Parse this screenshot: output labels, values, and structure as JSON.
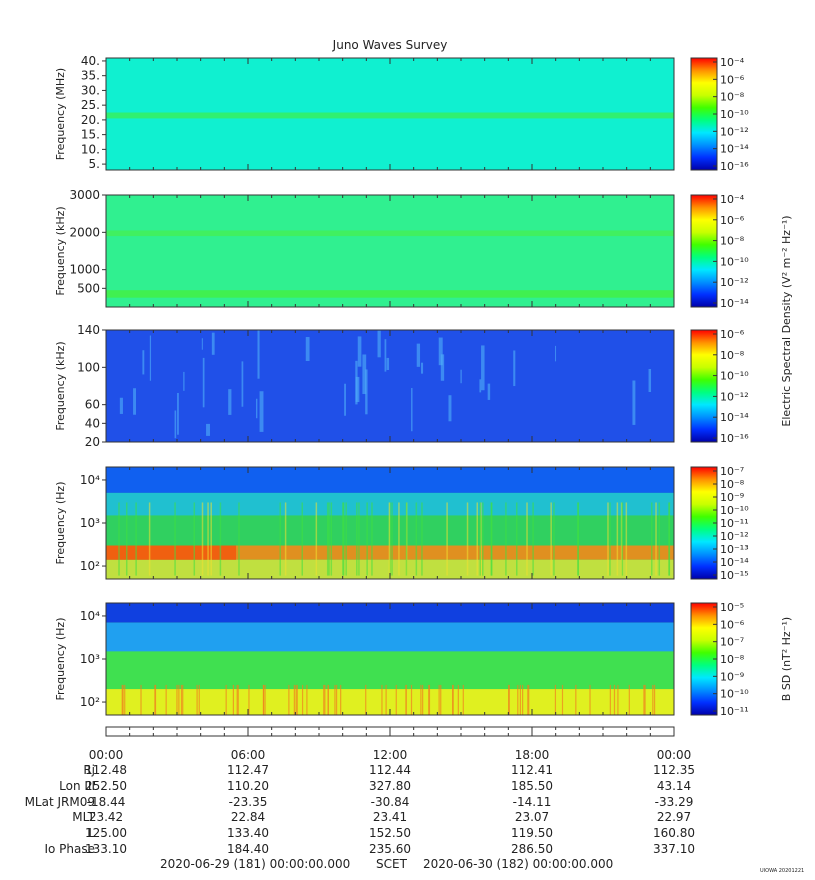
{
  "title": "Juno Waves Survey",
  "palette": [
    "#0000aa",
    "#0030ff",
    "#0090ff",
    "#00e8ff",
    "#00ff80",
    "#40ff00",
    "#c8ff00",
    "#ffff00",
    "#ff9000",
    "#ff0000"
  ],
  "chart_data": [
    {
      "type": "heatmap",
      "id": "panel1",
      "ylabel": "Frequency (MHz)",
      "yscale": "linear",
      "ylim": [
        3,
        41
      ],
      "yticks": [
        "40.",
        "35.",
        "30.",
        "25.",
        "20.",
        "15.",
        "10.",
        "5."
      ],
      "yticks_values": [
        40,
        35,
        30,
        25,
        20,
        15,
        10,
        5
      ],
      "background_color": "#10f0d0",
      "bands": [
        {
          "from": 20.5,
          "to": 22.5,
          "color": "#30f070"
        }
      ],
      "colorbar_ticks": [
        "10⁻⁴",
        "10⁻⁶",
        "10⁻⁸",
        "10⁻¹⁰",
        "10⁻¹²",
        "10⁻¹⁴",
        "10⁻¹⁶"
      ]
    },
    {
      "type": "heatmap",
      "id": "panel2",
      "ylabel": "Frequency (kHz)",
      "yscale": "linear",
      "ylim": [
        0,
        3000
      ],
      "yticks": [
        "3000",
        "2000",
        "1000",
        "500"
      ],
      "yticks_values": [
        3000,
        2000,
        1000,
        500
      ],
      "background_color": "#30f090",
      "bands": [
        {
          "from": 1900,
          "to": 2050,
          "color": "#40f060"
        },
        {
          "from": 250,
          "to": 450,
          "color": "#40f050"
        }
      ],
      "colorbar_ticks": [
        "10⁻⁴",
        "10⁻⁶",
        "10⁻⁸",
        "10⁻¹⁰",
        "10⁻¹²",
        "10⁻¹⁴"
      ],
      "colorbar_label": "Electric Spectral Density (V² m⁻² Hz⁻¹)"
    },
    {
      "type": "heatmap",
      "id": "panel3",
      "ylabel": "Frequency (kHz)",
      "yscale": "linear",
      "ylim": [
        20,
        140
      ],
      "yticks": [
        "140",
        "100",
        "60",
        "40",
        "20"
      ],
      "yticks_values": [
        140,
        100,
        60,
        40,
        20
      ],
      "background_color": "#2050e8",
      "bands": [],
      "colorbar_ticks": [
        "10⁻⁶",
        "10⁻⁸",
        "10⁻¹⁰",
        "10⁻¹²",
        "10⁻¹⁴",
        "10⁻¹⁶"
      ]
    },
    {
      "type": "heatmap",
      "id": "panel4",
      "ylabel": "Frequency (Hz)",
      "yscale": "log",
      "ylim": [
        50,
        20000
      ],
      "yticks": [
        "10⁴",
        "10³",
        "10²"
      ],
      "yticks_values": [
        10000,
        1000,
        100
      ],
      "background_color": "#30d060",
      "bands": [
        {
          "from": 5000,
          "to": 20000,
          "color": "#1060f0"
        },
        {
          "from": 1500,
          "to": 5000,
          "color": "#20c0d0"
        },
        {
          "from": 140,
          "to": 300,
          "color": "#e09020"
        },
        {
          "from": 50,
          "to": 140,
          "color": "#c0e040"
        }
      ],
      "colorbar_ticks": [
        "10⁻⁷",
        "10⁻⁸",
        "10⁻⁹",
        "10⁻¹⁰",
        "10⁻¹¹",
        "10⁻¹²",
        "10⁻¹³",
        "10⁻¹⁴",
        "10⁻¹⁵"
      ]
    },
    {
      "type": "heatmap",
      "id": "panel5",
      "ylabel": "Frequency (Hz)",
      "yscale": "log",
      "ylim": [
        50,
        20000
      ],
      "yticks": [
        "10⁴",
        "10³",
        "10²"
      ],
      "yticks_values": [
        10000,
        1000,
        100
      ],
      "background_color": "#40e060",
      "bands": [
        {
          "from": 7000,
          "to": 20000,
          "color": "#1040e0"
        },
        {
          "from": 1500,
          "to": 7000,
          "color": "#20a0f0"
        },
        {
          "from": 200,
          "to": 1500,
          "color": "#40e050"
        },
        {
          "from": 50,
          "to": 200,
          "color": "#e0f020"
        }
      ],
      "colorbar_ticks": [
        "10⁻⁵",
        "10⁻⁶",
        "10⁻⁷",
        "10⁻⁸",
        "10⁻⁹",
        "10⁻¹⁰",
        "10⁻¹¹"
      ],
      "colorbar_label": "B SD (nT² Hz⁻¹)"
    }
  ],
  "time_axis": {
    "ticks": [
      "00:00",
      "06:00",
      "12:00",
      "18:00",
      "00:00"
    ]
  },
  "ephemeris": [
    {
      "label": "Rj",
      "values": [
        "112.48",
        "112.47",
        "112.44",
        "112.41",
        "112.35"
      ]
    },
    {
      "label": "Lon III",
      "values": [
        "252.50",
        "110.20",
        "327.80",
        "185.50",
        "43.14"
      ]
    },
    {
      "label": "MLat JRM09",
      "values": [
        "-18.44",
        "-23.35",
        "-30.84",
        "-14.11",
        "-33.29"
      ]
    },
    {
      "label": "MLT",
      "values": [
        "23.42",
        "22.84",
        "23.41",
        "23.07",
        "22.97"
      ]
    },
    {
      "label": "L",
      "values": [
        "125.00",
        "133.40",
        "152.50",
        "119.50",
        "160.80"
      ]
    },
    {
      "label": "Io Phase",
      "values": [
        "133.10",
        "184.40",
        "235.60",
        "286.50",
        "337.10"
      ]
    }
  ],
  "footer": {
    "start": "2020-06-29 (181) 00:00:00.000",
    "scet": "SCET",
    "end": "2020-06-30 (182) 00:00:00.000",
    "stamp": "UIOWA 20201221"
  }
}
